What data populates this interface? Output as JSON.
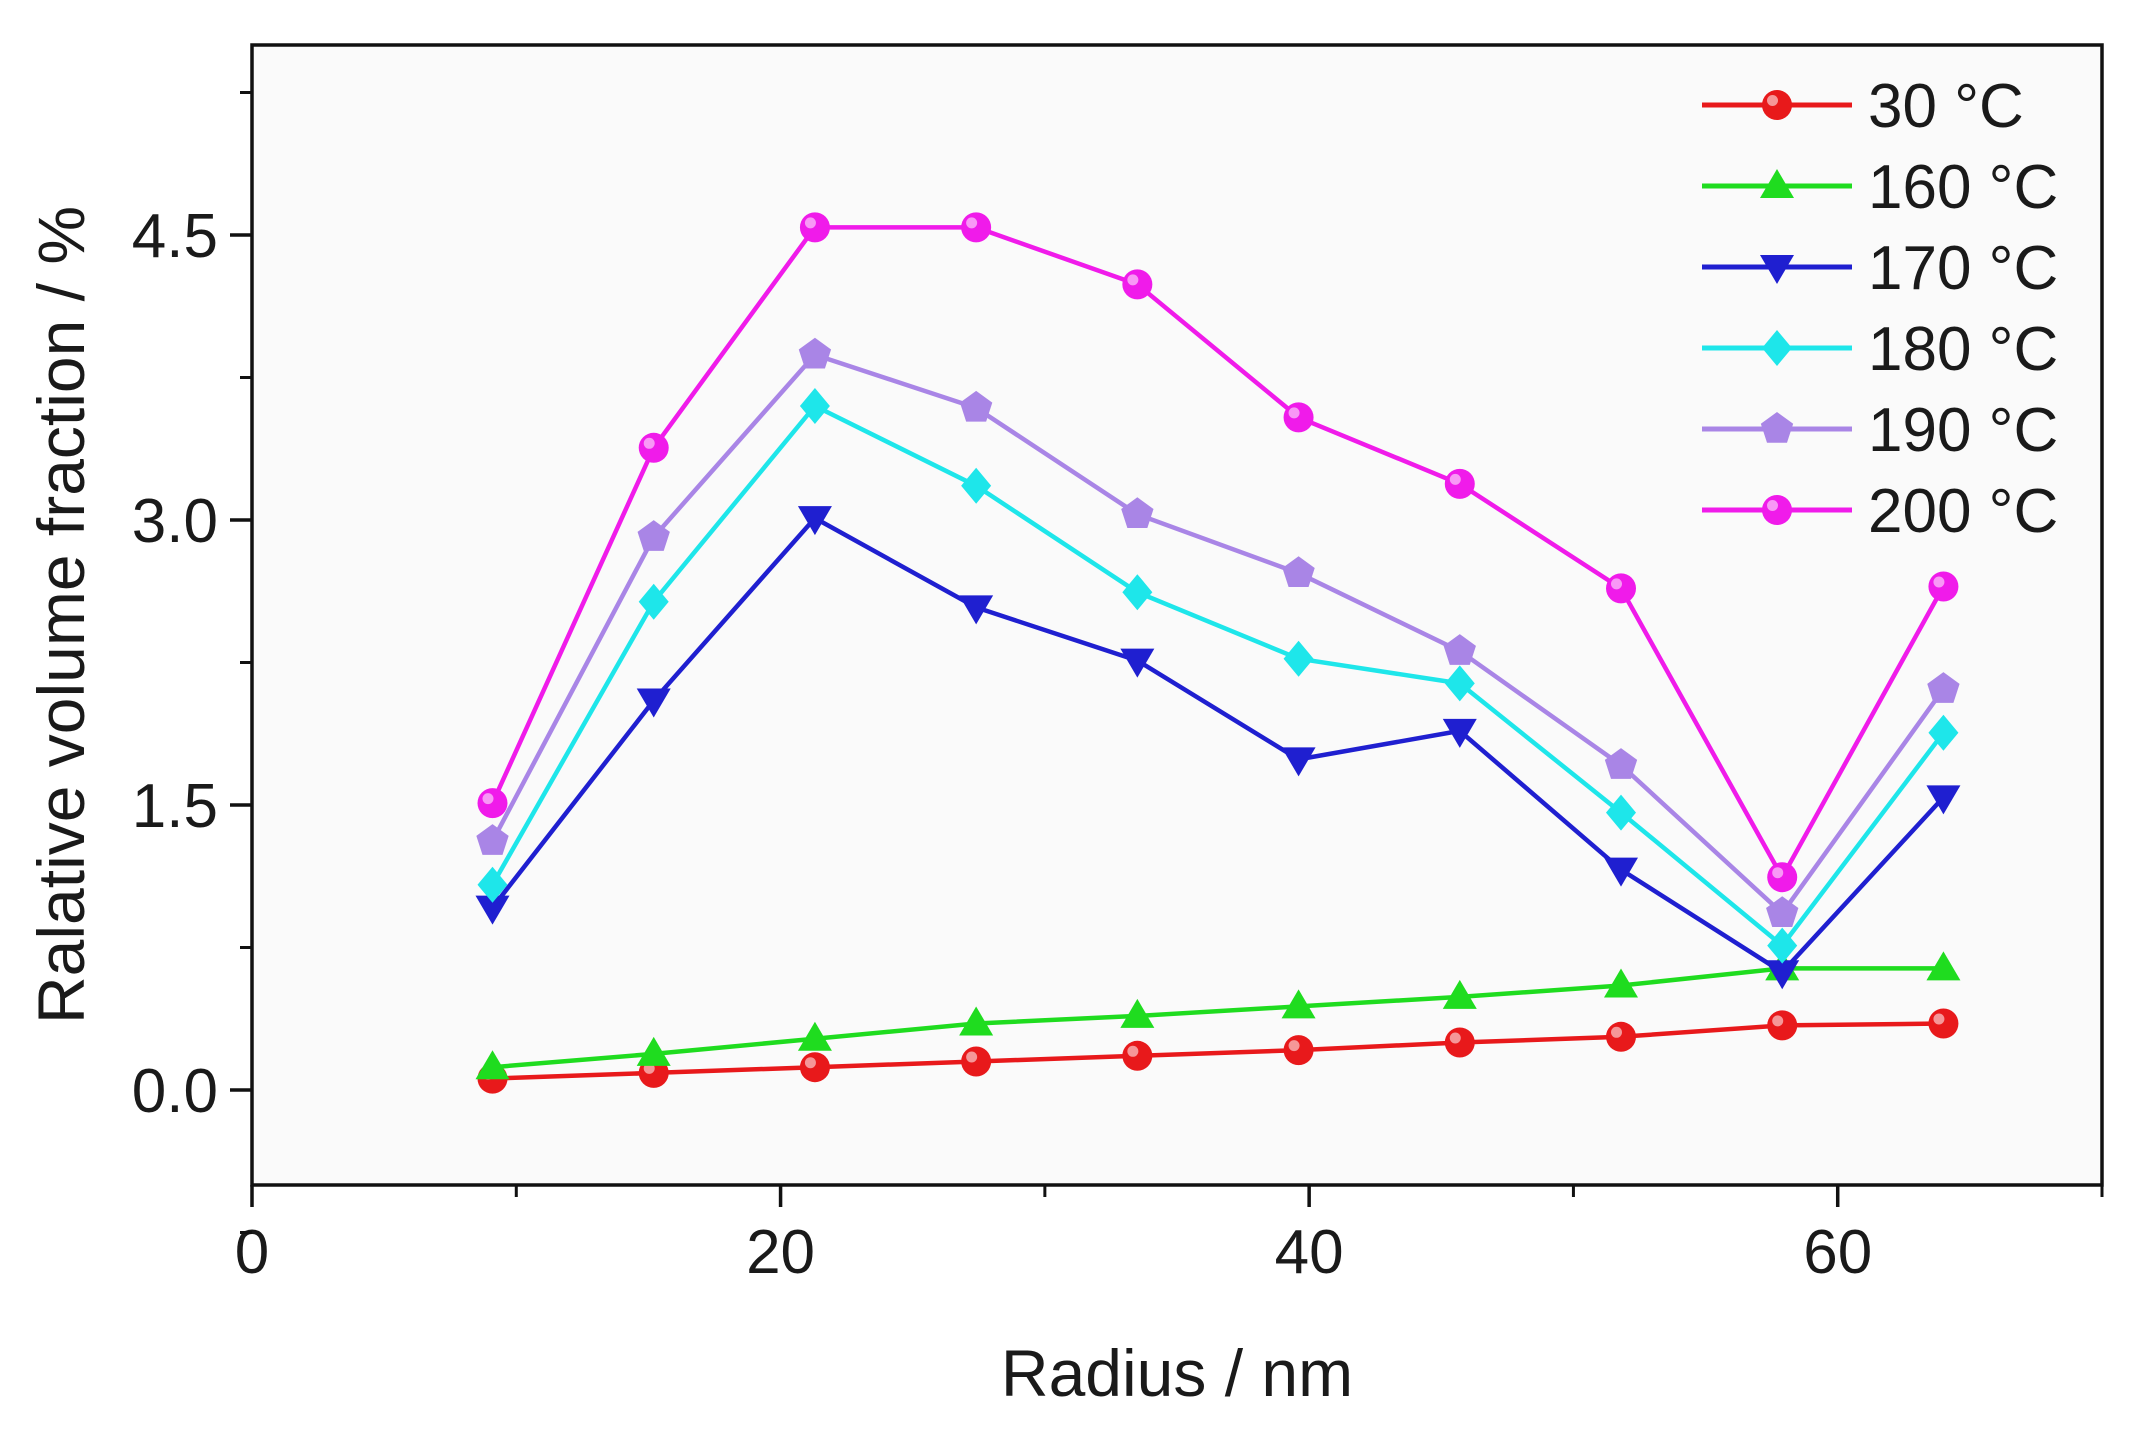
{
  "chart_data": {
    "type": "line",
    "title": "",
    "xlabel": "Radius / nm",
    "ylabel": "Ralative volume fraction / %",
    "xlim": [
      0,
      70
    ],
    "ylim": [
      -0.5,
      5.5
    ],
    "x_ticks": [
      0,
      20,
      40,
      60
    ],
    "x_tick_labels": [
      "0",
      "20",
      "40",
      "60"
    ],
    "x_minor_ticks": [
      10,
      30,
      50,
      70
    ],
    "y_ticks": [
      0.0,
      1.5,
      3.0,
      4.5
    ],
    "y_tick_labels": [
      "0.0",
      "1.5",
      "3.0",
      "4.5"
    ],
    "y_minor_ticks": [
      -0.75,
      0.75,
      2.25,
      3.75,
      5.25
    ],
    "grid": false,
    "legend_position": "top-right",
    "x": [
      9.1,
      15.2,
      21.3,
      27.4,
      33.5,
      39.6,
      45.7,
      51.8,
      57.9,
      64.0
    ],
    "series": [
      {
        "name": "30 °C",
        "color": "#e8191b",
        "marker": "circle",
        "values": [
          0.06,
          0.09,
          0.12,
          0.15,
          0.18,
          0.21,
          0.25,
          0.28,
          0.34,
          0.35
        ]
      },
      {
        "name": "160 °C",
        "color": "#1fdc1f",
        "marker": "triangle-up",
        "values": [
          0.12,
          0.19,
          0.27,
          0.35,
          0.39,
          0.44,
          0.49,
          0.55,
          0.64,
          0.64
        ]
      },
      {
        "name": "170 °C",
        "color": "#1f1fd0",
        "marker": "triangle-down",
        "values": [
          0.96,
          2.05,
          3.01,
          2.54,
          2.26,
          1.74,
          1.89,
          1.16,
          0.62,
          1.54
        ]
      },
      {
        "name": "180 °C",
        "color": "#1ee6ea",
        "marker": "diamond",
        "values": [
          1.08,
          2.57,
          3.6,
          3.18,
          2.62,
          2.27,
          2.14,
          1.46,
          0.76,
          1.88
        ]
      },
      {
        "name": "190 °C",
        "color": "#a985e6",
        "marker": "pentagon",
        "values": [
          1.31,
          2.91,
          3.87,
          3.59,
          3.03,
          2.72,
          2.31,
          1.71,
          0.93,
          2.11
        ]
      },
      {
        "name": "200 °C",
        "color": "#f01bea",
        "marker": "circle",
        "values": [
          1.51,
          3.38,
          4.54,
          4.54,
          4.24,
          3.54,
          3.19,
          2.64,
          1.12,
          2.65
        ]
      }
    ]
  }
}
